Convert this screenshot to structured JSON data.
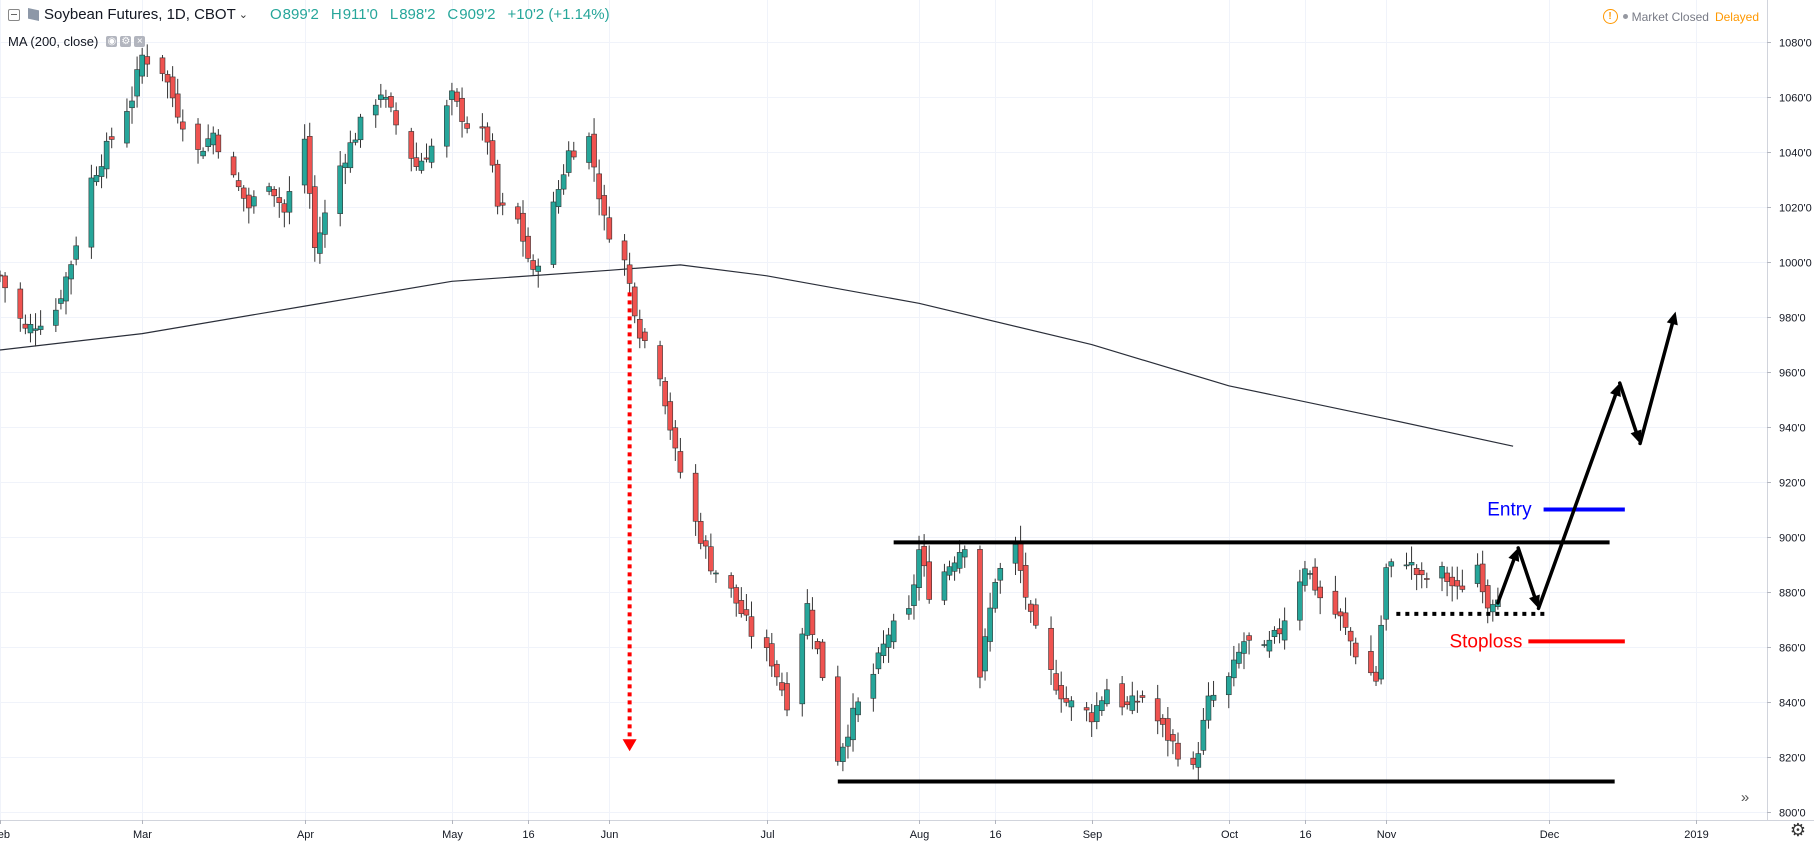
{
  "header": {
    "symbol": "Soybean Futures, 1D, CBOT",
    "ohlc": [
      {
        "k": "O",
        "v": "899'2"
      },
      {
        "k": "H",
        "v": "911'0"
      },
      {
        "k": "L",
        "v": "898'2"
      },
      {
        "k": "C",
        "v": "909'2"
      }
    ],
    "change": "+10'2 (+1.14%)",
    "indicator": "MA (200, close)",
    "status_closed": "Market Closed",
    "status_delayed": "Delayed",
    "colors": {
      "up": "#26a69a",
      "down": "#ef5350",
      "warning": "#ff9800"
    }
  },
  "chart_data": {
    "type": "candlestick",
    "price_axis": {
      "ticks": [
        800,
        820,
        840,
        860,
        880,
        900,
        920,
        940,
        960,
        980,
        1000,
        1020,
        1040,
        1060,
        1080
      ],
      "tick_labels": [
        "800'0",
        "820'0",
        "840'0",
        "860'0",
        "880'0",
        "900'0",
        "920'0",
        "940'0",
        "960'0",
        "980'0",
        "1000'0",
        "1020'0",
        "1040'0",
        "1060'0",
        "1080'0"
      ],
      "range": [
        797,
        1083
      ]
    },
    "time_axis": {
      "range": [
        "2018-02-01",
        "2019-01-15"
      ],
      "ticks": [
        {
          "date": "2018-02-01",
          "label": "Feb"
        },
        {
          "date": "2018-03-01",
          "label": "Mar"
        },
        {
          "date": "2018-04-02",
          "label": "Apr"
        },
        {
          "date": "2018-05-01",
          "label": "May"
        },
        {
          "date": "2018-05-16",
          "label": "16"
        },
        {
          "date": "2018-06-01",
          "label": "Jun"
        },
        {
          "date": "2018-07-02",
          "label": "Jul"
        },
        {
          "date": "2018-08-01",
          "label": "Aug"
        },
        {
          "date": "2018-08-16",
          "label": "16"
        },
        {
          "date": "2018-09-04",
          "label": "Sep"
        },
        {
          "date": "2018-10-01",
          "label": "Oct"
        },
        {
          "date": "2018-10-16",
          "label": "16"
        },
        {
          "date": "2018-11-01",
          "label": "Nov"
        },
        {
          "date": "2018-12-03",
          "label": "Dec"
        },
        {
          "date": "2019-01-01",
          "label": "2019"
        }
      ]
    },
    "grid": true,
    "price_path": [
      [
        "2018-02-01",
        995
      ],
      [
        "2018-02-06",
        975
      ],
      [
        "2018-02-12",
        983
      ],
      [
        "2018-02-15",
        1000
      ],
      [
        "2018-02-19",
        1030
      ],
      [
        "2018-02-23",
        1045
      ],
      [
        "2018-02-27",
        1060
      ],
      [
        "2018-03-01",
        1075
      ],
      [
        "2018-03-05",
        1070
      ],
      [
        "2018-03-08",
        1055
      ],
      [
        "2018-03-12",
        1040
      ],
      [
        "2018-03-15",
        1047
      ],
      [
        "2018-03-19",
        1030
      ],
      [
        "2018-03-22",
        1020
      ],
      [
        "2018-03-26",
        1030
      ],
      [
        "2018-03-29",
        1018
      ],
      [
        "2018-04-02",
        1045
      ],
      [
        "2018-04-04",
        1005
      ],
      [
        "2018-04-09",
        1035
      ],
      [
        "2018-04-13",
        1050
      ],
      [
        "2018-04-17",
        1062
      ],
      [
        "2018-04-20",
        1050
      ],
      [
        "2018-04-24",
        1035
      ],
      [
        "2018-04-27",
        1042
      ],
      [
        "2018-05-01",
        1060
      ],
      [
        "2018-05-04",
        1050
      ],
      [
        "2018-05-08",
        1045
      ],
      [
        "2018-05-10",
        1020
      ],
      [
        "2018-05-14",
        1015
      ],
      [
        "2018-05-17",
        995
      ],
      [
        "2018-05-21",
        1020
      ],
      [
        "2018-05-24",
        1040
      ],
      [
        "2018-05-28",
        1045
      ],
      [
        "2018-05-31",
        1015
      ],
      [
        "2018-06-04",
        1000
      ],
      [
        "2018-06-07",
        975
      ],
      [
        "2018-06-11",
        960
      ],
      [
        "2018-06-14",
        930
      ],
      [
        "2018-06-18",
        905
      ],
      [
        "2018-06-21",
        890
      ],
      [
        "2018-06-25",
        880
      ],
      [
        "2018-06-29",
        865
      ],
      [
        "2018-07-03",
        855
      ],
      [
        "2018-07-06",
        840
      ],
      [
        "2018-07-10",
        875
      ],
      [
        "2018-07-13",
        850
      ],
      [
        "2018-07-16",
        820
      ],
      [
        "2018-07-19",
        835
      ],
      [
        "2018-07-23",
        850
      ],
      [
        "2018-07-26",
        865
      ],
      [
        "2018-07-30",
        872
      ],
      [
        "2018-08-01",
        895
      ],
      [
        "2018-08-03",
        880
      ],
      [
        "2018-08-07",
        890
      ],
      [
        "2018-08-10",
        898
      ],
      [
        "2018-08-13",
        850
      ],
      [
        "2018-08-16",
        885
      ],
      [
        "2018-08-20",
        896
      ],
      [
        "2018-08-23",
        870
      ],
      [
        "2018-08-27",
        850
      ],
      [
        "2018-08-30",
        840
      ],
      [
        "2018-09-04",
        835
      ],
      [
        "2018-09-07",
        845
      ],
      [
        "2018-09-11",
        838
      ],
      [
        "2018-09-14",
        842
      ],
      [
        "2018-09-18",
        830
      ],
      [
        "2018-09-21",
        822
      ],
      [
        "2018-09-24",
        815
      ],
      [
        "2018-09-27",
        840
      ],
      [
        "2018-10-01",
        848
      ],
      [
        "2018-10-04",
        862
      ],
      [
        "2018-10-08",
        858
      ],
      [
        "2018-10-11",
        866
      ],
      [
        "2018-10-16",
        890
      ],
      [
        "2018-10-19",
        878
      ],
      [
        "2018-10-23",
        870
      ],
      [
        "2018-10-26",
        858
      ],
      [
        "2018-10-30",
        848
      ],
      [
        "2018-11-01",
        888
      ],
      [
        "2018-11-05",
        892
      ],
      [
        "2018-11-08",
        884
      ],
      [
        "2018-11-12",
        887
      ],
      [
        "2018-11-15",
        880
      ],
      [
        "2018-11-19",
        890
      ],
      [
        "2018-11-21",
        876
      ],
      [
        "2018-11-23",
        880
      ]
    ],
    "ma200": [
      [
        "2018-02-01",
        968
      ],
      [
        "2018-03-01",
        974
      ],
      [
        "2018-04-02",
        984
      ],
      [
        "2018-05-01",
        993
      ],
      [
        "2018-06-01",
        997
      ],
      [
        "2018-06-15",
        999
      ],
      [
        "2018-07-02",
        995
      ],
      [
        "2018-08-01",
        985
      ],
      [
        "2018-09-04",
        970
      ],
      [
        "2018-10-01",
        955
      ],
      [
        "2018-11-01",
        943
      ],
      [
        "2018-11-26",
        933
      ]
    ],
    "annotations": {
      "resistance": {
        "price": 898,
        "from": "2018-07-27",
        "to": "2018-12-15"
      },
      "support": {
        "price": 811,
        "from": "2018-07-16",
        "to": "2018-12-16"
      },
      "breakdown_arrow": {
        "date": "2018-06-05",
        "from": 989,
        "to": 822
      },
      "entry": {
        "price": 910,
        "from": "2018-12-02",
        "to": "2018-12-18",
        "label": "Entry",
        "color": "#0000ff"
      },
      "stoploss": {
        "price": 862,
        "from": "2018-11-29",
        "to": "2018-12-18",
        "label": "Stoploss",
        "color": "#ff0000"
      },
      "pullback_level": {
        "price": 872,
        "from": "2018-11-03",
        "to": "2018-12-03"
      },
      "projection": [
        [
          "2018-11-23",
          876
        ],
        [
          "2018-11-27",
          896
        ],
        [
          "2018-12-01",
          874
        ],
        [
          "2018-12-17",
          956
        ],
        [
          "2018-12-21",
          934
        ],
        [
          "2018-12-28",
          982
        ]
      ]
    }
  }
}
